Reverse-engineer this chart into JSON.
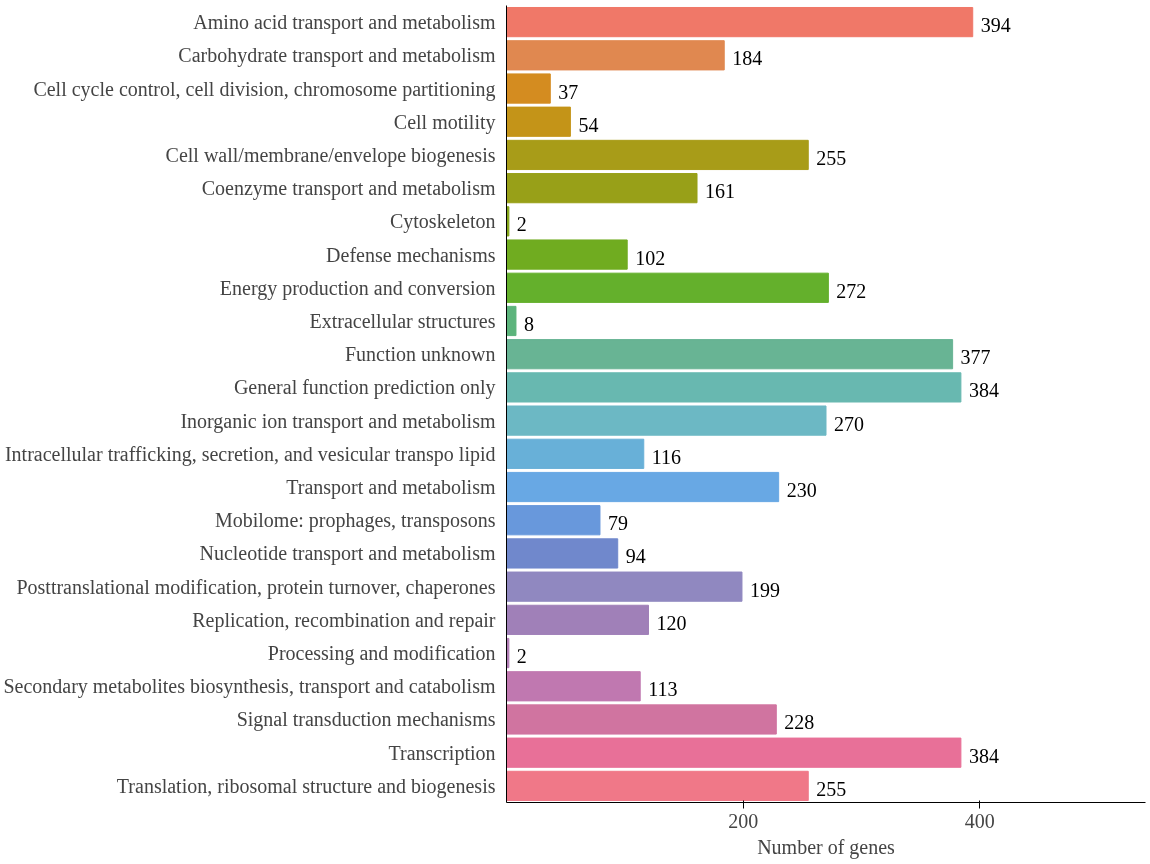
{
  "chart_data": {
    "type": "bar",
    "orientation": "horizontal",
    "xlabel": "Number of genes",
    "categories": [
      "Amino acid transport and metabolism",
      "Carbohydrate transport and metabolism",
      "Cell cycle control, cell division, chromosome partitioning",
      "Cell motility",
      "Cell wall/membrane/envelope biogenesis",
      "Coenzyme transport and metabolism",
      "Cytoskeleton",
      "Defense mechanisms",
      "Energy production and conversion",
      "Extracellular structures",
      "Function unknown",
      "General function prediction only",
      "Inorganic ion transport and metabolism",
      "Intracellular trafficking, secretion, and vesicular transpo lipid",
      "Transport and metabolism",
      "Mobilome: prophages, transposons",
      "Nucleotide transport and metabolism",
      "Posttranslational modification, protein turnover, chaperones",
      "Replication, recombination and repair",
      "Processing and modification",
      "Secondary metabolites biosynthesis, transport and catabolism",
      "Signal transduction mechanisms",
      "Transcription",
      "Translation, ribosomal structure and biogenesis"
    ],
    "values": [
      394,
      184,
      37,
      54,
      255,
      161,
      2,
      102,
      272,
      8,
      377,
      384,
      270,
      116,
      230,
      79,
      94,
      199,
      120,
      2,
      113,
      228,
      384,
      255
    ],
    "colors": [
      "#f07868",
      "#e08850",
      "#d48c20",
      "#c49418",
      "#a89c18",
      "#98a018",
      "#84a418",
      "#70ac20",
      "#64b02c",
      "#5cb47c",
      "#68b494",
      "#68b8b0",
      "#6cb8c4",
      "#68b0d8",
      "#68a8e4",
      "#6898dc",
      "#7088cc",
      "#9088c0",
      "#a080b8",
      "#b07cb4",
      "#c078b0",
      "#d074a0",
      "#e87098",
      "#f07888"
    ],
    "xlim": [
      0,
      540
    ],
    "xticks": [
      200,
      400
    ],
    "data_labels": true,
    "grid": false
  }
}
